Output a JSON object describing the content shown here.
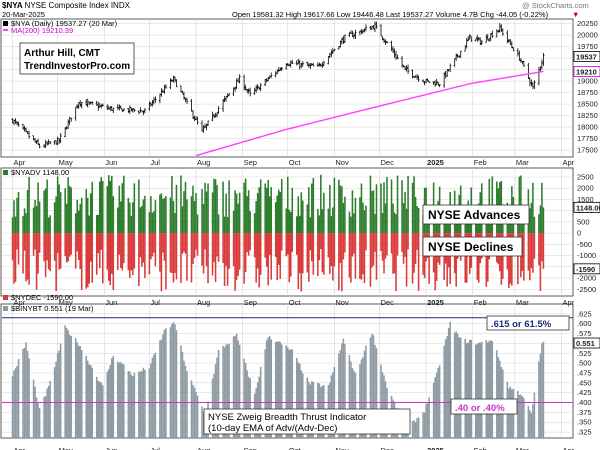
{
  "header": {
    "symbol": "$NYA",
    "name": "NYSE Composite Index",
    "exchange": "INDX",
    "date": "20-Mar-2025",
    "ohlc": "Open 19581.32  High 19617.66  Low 19446.48  Last 19537.27  Volume 4.7B  Chg -44.05 (-0.22%)",
    "chg_arrow": "▼",
    "watermark": "@ StockCharts.com"
  },
  "colors": {
    "price_bar": "#000000",
    "ma_line": "#ff40ff",
    "advances": "#2d7d2d",
    "declines": "#d93b3b",
    "thrust": "#8f9ba3",
    "thrust_line_high": "#1f2a7a",
    "thrust_line_low": "#cc33cc",
    "grid": "#d5d5d5"
  },
  "annotations": {
    "author": "Arthur Hill, CMT",
    "site": "TrendInvestorPro.com",
    "advances_label": "NYSE Advances",
    "declines_label": "NYSE Declines",
    "thrust_high_label": ".615 or 61.5%",
    "thrust_low_label": ".40 or .40%",
    "thrust_title_1": "NYSE Zweig Breadth Thrust Indicator",
    "thrust_title_2": "(10-day EMA of Adv/(Adv-Dec)"
  },
  "x_axis": {
    "months": [
      "Apr",
      "May",
      "Jun",
      "Jul",
      "Aug",
      "Sep",
      "Oct",
      "Nov",
      "Dec",
      "2025",
      "Feb",
      "Mar",
      "Apr"
    ]
  },
  "chart_data": [
    {
      "type": "ohlc",
      "legend_price": "$NYA (Daily) 19537.27 (20 Mar)",
      "legend_ma": "MA(200) 19210.39",
      "last_price_label": "19537",
      "last_ma_label": "19210",
      "ylim": [
        17350,
        20350
      ],
      "y_ticks": [
        17500,
        17750,
        18000,
        18250,
        18500,
        18750,
        19000,
        19250,
        19500,
        19750,
        20000,
        20250
      ],
      "close_waypoints": [
        [
          "2024-04-01",
          18150
        ],
        [
          "2024-04-19",
          17580
        ],
        [
          "2024-05-02",
          17700
        ],
        [
          "2024-05-15",
          18550
        ],
        [
          "2024-06-05",
          18400
        ],
        [
          "2024-06-28",
          18350
        ],
        [
          "2024-07-17",
          19050
        ],
        [
          "2024-08-05",
          17900
        ],
        [
          "2024-08-30",
          19050
        ],
        [
          "2024-09-06",
          18700
        ],
        [
          "2024-09-30",
          19400
        ],
        [
          "2024-10-21",
          19300
        ],
        [
          "2024-11-08",
          19950
        ],
        [
          "2024-11-28",
          20200
        ],
        [
          "2024-12-18",
          19250
        ],
        [
          "2024-12-31",
          19000
        ],
        [
          "2025-01-10",
          18950
        ],
        [
          "2025-01-30",
          19950
        ],
        [
          "2025-02-07",
          19850
        ],
        [
          "2025-02-19",
          20150
        ],
        [
          "2025-03-05",
          19450
        ],
        [
          "2025-03-13",
          18850
        ],
        [
          "2025-03-20",
          19537
        ]
      ],
      "ma_waypoints": [
        [
          "2024-08-01",
          17380
        ],
        [
          "2024-09-30",
          17950
        ],
        [
          "2024-11-30",
          18450
        ],
        [
          "2025-01-31",
          18950
        ],
        [
          "2025-03-20",
          19210
        ]
      ]
    },
    {
      "type": "bar",
      "legend_adv": "$NYADV 1148.00",
      "legend_dec": "$NYDEC -1590.00",
      "last_adv_label": "1148.00",
      "last_dec_label": "-1590",
      "ylim": [
        -2800,
        2900
      ],
      "y_ticks": [
        -2500,
        -2000,
        -1500,
        -1000,
        -500,
        0,
        500,
        1000,
        1500,
        2000,
        2500
      ],
      "advance_range": [
        700,
        2600
      ],
      "decline_range": [
        -2600,
        -700
      ],
      "last_advance": 1148,
      "last_decline": -1590
    },
    {
      "type": "area",
      "legend": "$BINYBT 0.551 (19 Mar)",
      "last_label": "0.551",
      "ylim": [
        0.31,
        0.65
      ],
      "y_ticks": [
        0.325,
        0.35,
        0.375,
        0.4,
        0.425,
        0.45,
        0.475,
        0.5,
        0.525,
        0.55,
        0.575,
        0.6,
        0.625
      ],
      "high_threshold": 0.615,
      "low_threshold": 0.4,
      "waypoints": [
        [
          "2024-04-01",
          0.47
        ],
        [
          "2024-04-10",
          0.55
        ],
        [
          "2024-04-19",
          0.38
        ],
        [
          "2024-04-26",
          0.45
        ],
        [
          "2024-05-06",
          0.59
        ],
        [
          "2024-05-15",
          0.55
        ],
        [
          "2024-05-31",
          0.44
        ],
        [
          "2024-06-07",
          0.52
        ],
        [
          "2024-06-20",
          0.47
        ],
        [
          "2024-07-01",
          0.49
        ],
        [
          "2024-07-12",
          0.59
        ],
        [
          "2024-07-18",
          0.6
        ],
        [
          "2024-07-26",
          0.48
        ],
        [
          "2024-08-07",
          0.37
        ],
        [
          "2024-08-16",
          0.53
        ],
        [
          "2024-08-28",
          0.57
        ],
        [
          "2024-09-09",
          0.42
        ],
        [
          "2024-09-18",
          0.57
        ],
        [
          "2024-10-04",
          0.53
        ],
        [
          "2024-10-15",
          0.45
        ],
        [
          "2024-10-28",
          0.44
        ],
        [
          "2024-11-07",
          0.56
        ],
        [
          "2024-11-15",
          0.47
        ],
        [
          "2024-11-26",
          0.58
        ],
        [
          "2024-12-06",
          0.44
        ],
        [
          "2024-12-19",
          0.33
        ],
        [
          "2024-12-31",
          0.38
        ],
        [
          "2025-01-08",
          0.47
        ],
        [
          "2025-01-17",
          0.6
        ],
        [
          "2025-01-24",
          0.56
        ],
        [
          "2025-02-05",
          0.55
        ],
        [
          "2025-02-14",
          0.56
        ],
        [
          "2025-02-25",
          0.44
        ],
        [
          "2025-03-06",
          0.42
        ],
        [
          "2025-03-12",
          0.37
        ],
        [
          "2025-03-19",
          0.551
        ]
      ]
    }
  ]
}
